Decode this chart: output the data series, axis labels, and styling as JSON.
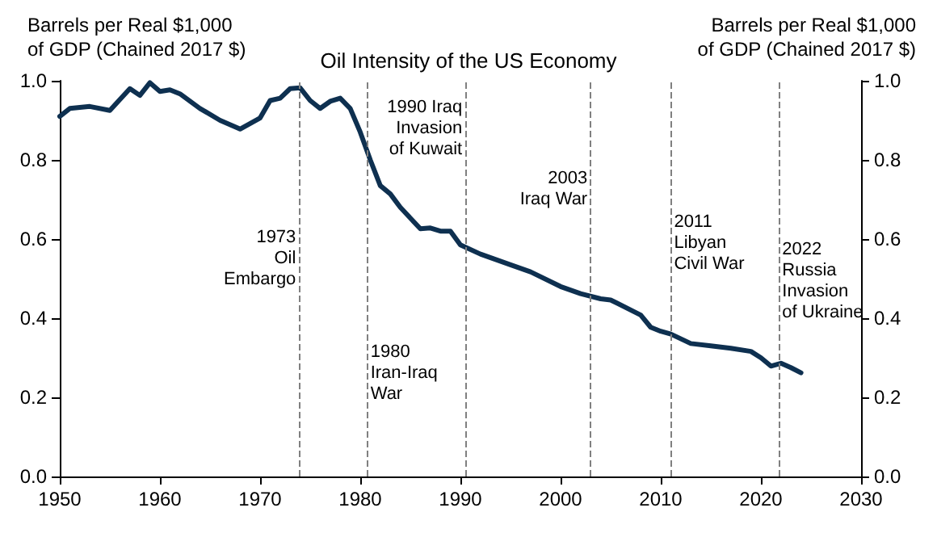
{
  "chart_data": {
    "type": "line",
    "title": "Oil Intensity of the US Economy",
    "ylabel": "Barrels per Real $1,000\nof GDP (Chained 2017 $)",
    "y2label": "Barrels per Real $1,000\nof GDP (Chained 2017 $)",
    "x": [
      1950,
      1951,
      1953,
      1955,
      1957,
      1958,
      1959,
      1960,
      1961,
      1962,
      1964,
      1966,
      1968,
      1970,
      1971,
      1972,
      1973,
      1974,
      1975,
      1976,
      1977,
      1978,
      1979,
      1980,
      1981,
      1982,
      1983,
      1984,
      1986,
      1987,
      1988,
      1989,
      1990,
      1992,
      1995,
      1997,
      2000,
      2002,
      2004,
      2005,
      2008,
      2009,
      2010,
      2011,
      2013,
      2015,
      2017,
      2019,
      2020,
      2021,
      2022,
      2023,
      2024
    ],
    "series": [
      {
        "color": "#0e3050",
        "values": [
          0.91,
          0.93,
          0.935,
          0.925,
          0.98,
          0.963,
          0.995,
          0.973,
          0.977,
          0.967,
          0.93,
          0.9,
          0.878,
          0.906,
          0.95,
          0.956,
          0.98,
          0.982,
          0.95,
          0.93,
          0.948,
          0.956,
          0.93,
          0.87,
          0.8,
          0.735,
          0.714,
          0.68,
          0.626,
          0.628,
          0.62,
          0.62,
          0.585,
          0.562,
          0.535,
          0.517,
          0.48,
          0.462,
          0.449,
          0.446,
          0.408,
          0.377,
          0.367,
          0.36,
          0.336,
          0.33,
          0.324,
          0.316,
          0.3,
          0.279,
          0.286,
          0.275,
          0.262
        ]
      }
    ],
    "xlim": [
      1950,
      2030
    ],
    "xticks": [
      1950,
      1960,
      1970,
      1980,
      1990,
      2000,
      2010,
      2020,
      2030
    ],
    "ylim": [
      0,
      1
    ],
    "yticks": [
      {
        "value": 0,
        "label": "0.0"
      },
      {
        "value": 0.2,
        "label": "0.2"
      },
      {
        "value": 0.4,
        "label": "0.4"
      },
      {
        "value": 0.6,
        "label": "0.6"
      },
      {
        "value": 0.8,
        "label": "0.8"
      },
      {
        "value": 1,
        "label": "1.0"
      }
    ],
    "y2lim": [
      0,
      1
    ],
    "y2ticks": [
      {
        "value": 0,
        "label": "0.0"
      },
      {
        "value": 0.2,
        "label": "0.2"
      },
      {
        "value": 0.4,
        "label": "0.4"
      },
      {
        "value": 0.6,
        "label": "0.6"
      },
      {
        "value": 0.8,
        "label": "0.8"
      },
      {
        "value": 1,
        "label": "1.0"
      }
    ],
    "ref_lines": [
      {
        "axis": "x",
        "value": 1973.9,
        "color": "#808080",
        "line_style": "dashed"
      },
      {
        "axis": "x",
        "value": 1980.7,
        "color": "#808080",
        "line_style": "dashed"
      },
      {
        "axis": "x",
        "value": 1990.5,
        "color": "#808080",
        "line_style": "dashed"
      },
      {
        "axis": "x",
        "value": 2003,
        "color": "#808080",
        "line_style": "dashed"
      },
      {
        "axis": "x",
        "value": 2011,
        "color": "#808080",
        "line_style": "dashed"
      },
      {
        "axis": "x",
        "value": 2021.8,
        "color": "#808080",
        "line_style": "dashed"
      }
    ],
    "annotations": [
      {
        "text": "1973\nOil\nEmbargo",
        "x": 1973.9,
        "y": 0.63
      },
      {
        "text": "1980\nIran-Iraq\nWar",
        "x": 1980.7,
        "y": 0.34
      },
      {
        "text": "1990 Iraq\nInvasion\nof Kuwait",
        "x": 1990.5,
        "y": 0.96
      },
      {
        "text": "2003\nIraq War",
        "x": 2003,
        "y": 0.78
      },
      {
        "text": "2011\nLibyan\nCivil War",
        "x": 2011,
        "y": 0.67
      },
      {
        "text": "2022\nRussia\nInvasion\nof Ukraine",
        "x": 2021.8,
        "y": 0.6
      }
    ],
    "grid": false,
    "marker": "none",
    "line_style": "solid"
  }
}
